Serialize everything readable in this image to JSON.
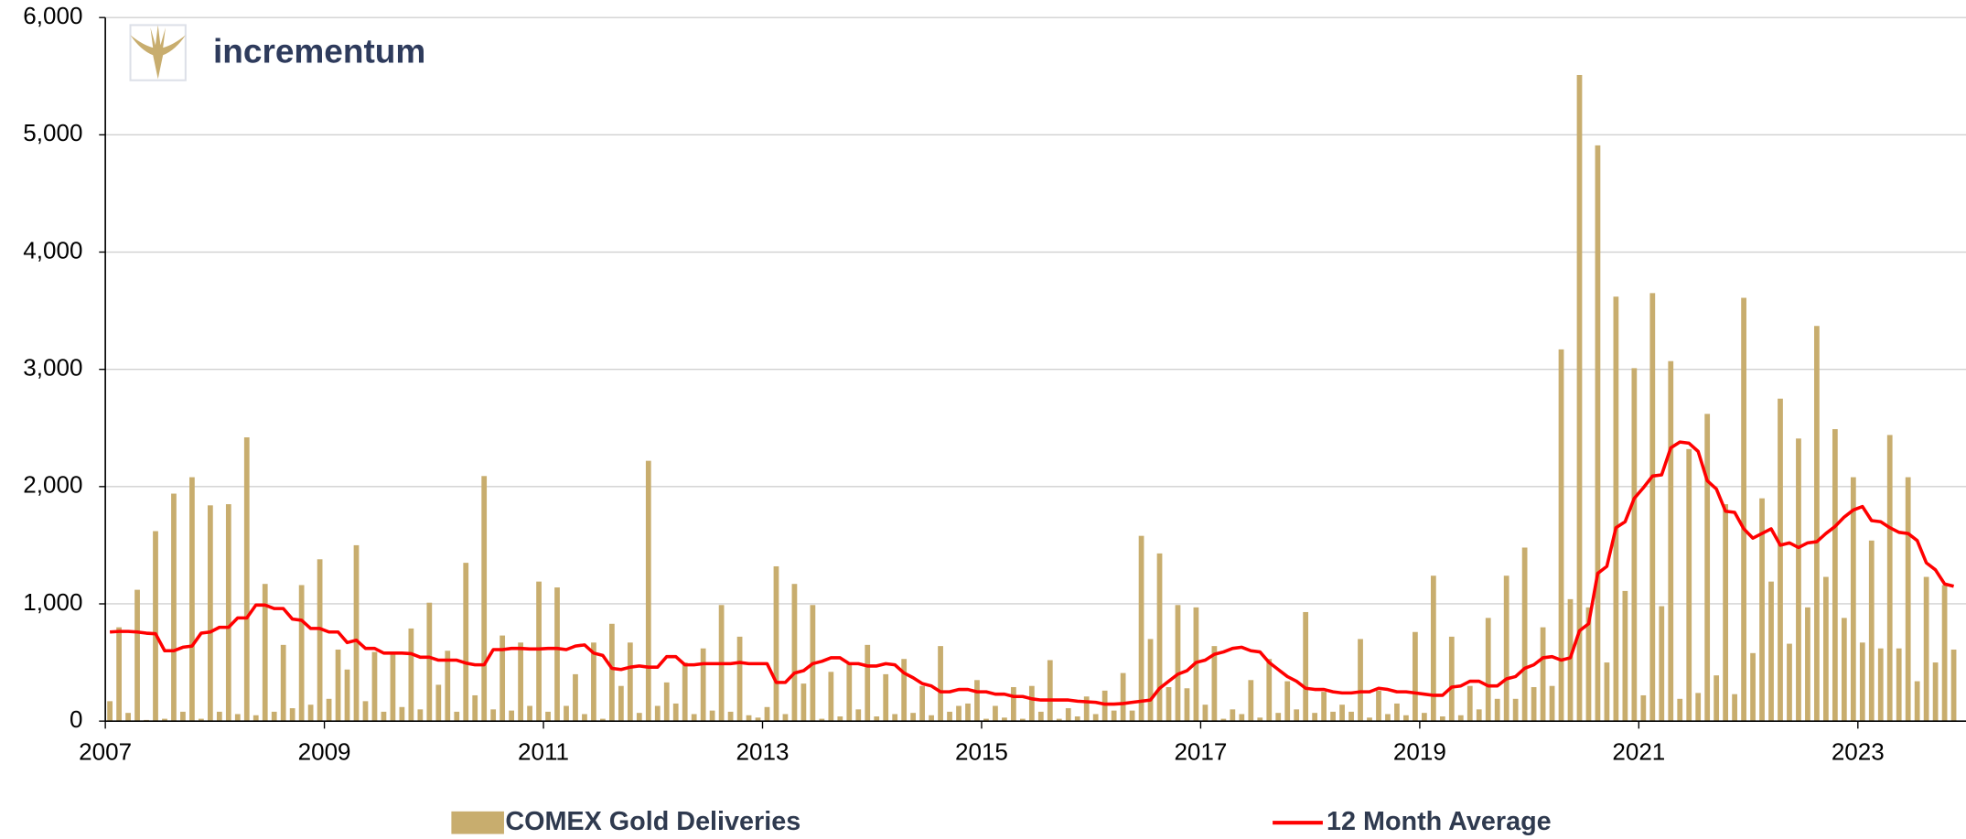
{
  "branding": {
    "logo_text": "incrementum"
  },
  "chart_data": {
    "type": "bar_line",
    "categories": [
      "2007",
      null,
      null,
      null,
      null,
      null,
      null,
      null,
      null,
      null,
      null,
      null,
      null,
      null,
      null,
      null,
      null,
      null,
      null,
      null,
      null,
      null,
      null,
      null,
      "2009",
      null,
      null,
      null,
      null,
      null,
      null,
      null,
      null,
      null,
      null,
      null,
      null,
      null,
      null,
      null,
      null,
      null,
      null,
      null,
      null,
      null,
      null,
      null,
      "2011",
      null,
      null,
      null,
      null,
      null,
      null,
      null,
      null,
      null,
      null,
      null,
      null,
      null,
      null,
      null,
      null,
      null,
      null,
      null,
      null,
      null,
      null,
      null,
      "2013",
      null,
      null,
      null,
      null,
      null,
      null,
      null,
      null,
      null,
      null,
      null,
      null,
      null,
      null,
      null,
      null,
      null,
      null,
      null,
      null,
      null,
      null,
      null,
      "2015",
      null,
      null,
      null,
      null,
      null,
      null,
      null,
      null,
      null,
      null,
      null,
      null,
      null,
      null,
      null,
      null,
      null,
      null,
      null,
      null,
      null,
      null,
      null,
      "2017",
      null,
      null,
      null,
      null,
      null,
      null,
      null,
      null,
      null,
      null,
      null,
      null,
      null,
      null,
      null,
      null,
      null,
      null,
      null,
      null,
      null,
      null,
      null,
      "2019",
      null,
      null,
      null,
      null,
      null,
      null,
      null,
      null,
      null,
      null,
      null,
      null,
      null,
      null,
      null,
      null,
      null,
      null,
      null,
      null,
      null,
      null,
      null,
      "2021",
      null,
      null,
      null,
      null,
      null,
      null,
      null,
      null,
      null,
      null,
      null,
      null,
      null,
      null,
      null,
      null,
      null,
      null,
      null,
      null,
      null,
      null,
      null,
      "2023",
      null,
      null,
      null,
      null,
      null,
      null,
      null,
      null,
      null,
      null
    ],
    "series": [
      {
        "name": "COMEX Gold Deliveries",
        "type": "bar",
        "color": "#c8ad6e",
        "values": [
          170,
          800,
          70,
          1120,
          10,
          1620,
          20,
          1940,
          80,
          2080,
          20,
          1840,
          80,
          1850,
          60,
          2420,
          50,
          1170,
          80,
          650,
          110,
          1160,
          140,
          1380,
          190,
          610,
          440,
          1500,
          170,
          590,
          80,
          580,
          120,
          790,
          100,
          1010,
          310,
          600,
          80,
          1350,
          220,
          2090,
          100,
          730,
          90,
          670,
          130,
          1190,
          80,
          1140,
          130,
          400,
          60,
          670,
          20,
          830,
          300,
          670,
          70,
          2220,
          130,
          330,
          150,
          500,
          60,
          620,
          90,
          990,
          80,
          720,
          50,
          30,
          120,
          1320,
          60,
          1170,
          320,
          990,
          20,
          420,
          40,
          500,
          100,
          650,
          40,
          400,
          60,
          530,
          70,
          300,
          50,
          640,
          80,
          130,
          150,
          350,
          20,
          130,
          30,
          290,
          20,
          300,
          80,
          520,
          20,
          110,
          40,
          210,
          60,
          260,
          90,
          410,
          90,
          1580,
          700,
          1430,
          290,
          990,
          280,
          970,
          140,
          640,
          20,
          100,
          60,
          350,
          30,
          530,
          70,
          340,
          100,
          930,
          70,
          250,
          80,
          140,
          80,
          700,
          30,
          260,
          60,
          150,
          50,
          760,
          70,
          1240,
          40,
          720,
          50,
          300,
          100,
          880,
          190,
          1240,
          190,
          1480,
          290,
          800,
          300,
          3170,
          1040,
          5510,
          970,
          4910,
          500,
          3620,
          1110,
          3010,
          220,
          3650,
          980,
          3070,
          190,
          2320,
          240,
          2620,
          390,
          1850,
          230,
          3610,
          580,
          1900,
          1190,
          2750,
          660,
          2410,
          970,
          3370,
          1230,
          2490,
          880,
          2080,
          670,
          1540,
          620,
          2440,
          620,
          2080,
          340,
          1230,
          500,
          1160,
          610
        ]
      },
      {
        "name": "12 Month Average",
        "type": "line",
        "color": "#ff0000",
        "values": [
          760,
          765,
          765,
          760,
          750,
          745,
          600,
          600,
          630,
          640,
          750,
          760,
          800,
          800,
          880,
          880,
          990,
          990,
          960,
          960,
          870,
          860,
          790,
          790,
          760,
          760,
          670,
          690,
          620,
          620,
          580,
          580,
          580,
          575,
          545,
          545,
          520,
          520,
          520,
          495,
          480,
          480,
          610,
          610,
          620,
          620,
          615,
          615,
          620,
          620,
          610,
          640,
          650,
          580,
          560,
          450,
          440,
          460,
          470,
          460,
          460,
          550,
          550,
          480,
          480,
          490,
          490,
          490,
          490,
          500,
          490,
          490,
          490,
          330,
          330,
          410,
          430,
          490,
          510,
          540,
          540,
          490,
          490,
          470,
          470,
          490,
          480,
          410,
          370,
          320,
          300,
          250,
          250,
          270,
          270,
          250,
          250,
          230,
          230,
          210,
          210,
          190,
          180,
          180,
          180,
          180,
          170,
          165,
          160,
          145,
          145,
          150,
          160,
          170,
          180,
          280,
          340,
          400,
          430,
          500,
          520,
          570,
          590,
          620,
          630,
          600,
          590,
          500,
          440,
          380,
          340,
          280,
          270,
          270,
          250,
          240,
          240,
          250,
          250,
          280,
          270,
          250,
          250,
          240,
          230,
          220,
          220,
          290,
          300,
          340,
          340,
          300,
          300,
          360,
          380,
          450,
          480,
          540,
          550,
          520,
          540,
          770,
          830,
          1260,
          1320,
          1650,
          1700,
          1900,
          1990,
          2090,
          2100,
          2330,
          2380,
          2370,
          2300,
          2050,
          1980,
          1790,
          1780,
          1640,
          1560,
          1600,
          1640,
          1500,
          1520,
          1480,
          1520,
          1530,
          1600,
          1660,
          1740,
          1800,
          1830,
          1710,
          1700,
          1650,
          1610,
          1600,
          1540,
          1350,
          1290,
          1170,
          1150
        ]
      }
    ],
    "ylim": [
      0,
      6000
    ],
    "yticks": [
      0,
      {
        "value": 1000,
        "label": "1,000"
      },
      {
        "value": 2000,
        "label": "2,000"
      },
      {
        "value": 3000,
        "label": "3,000"
      },
      {
        "value": 4000,
        "label": "4,000"
      },
      {
        "value": 5000,
        "label": "5,000"
      },
      {
        "value": 6000,
        "label": "6,000"
      }
    ],
    "grid": true,
    "legend": "bottom"
  }
}
